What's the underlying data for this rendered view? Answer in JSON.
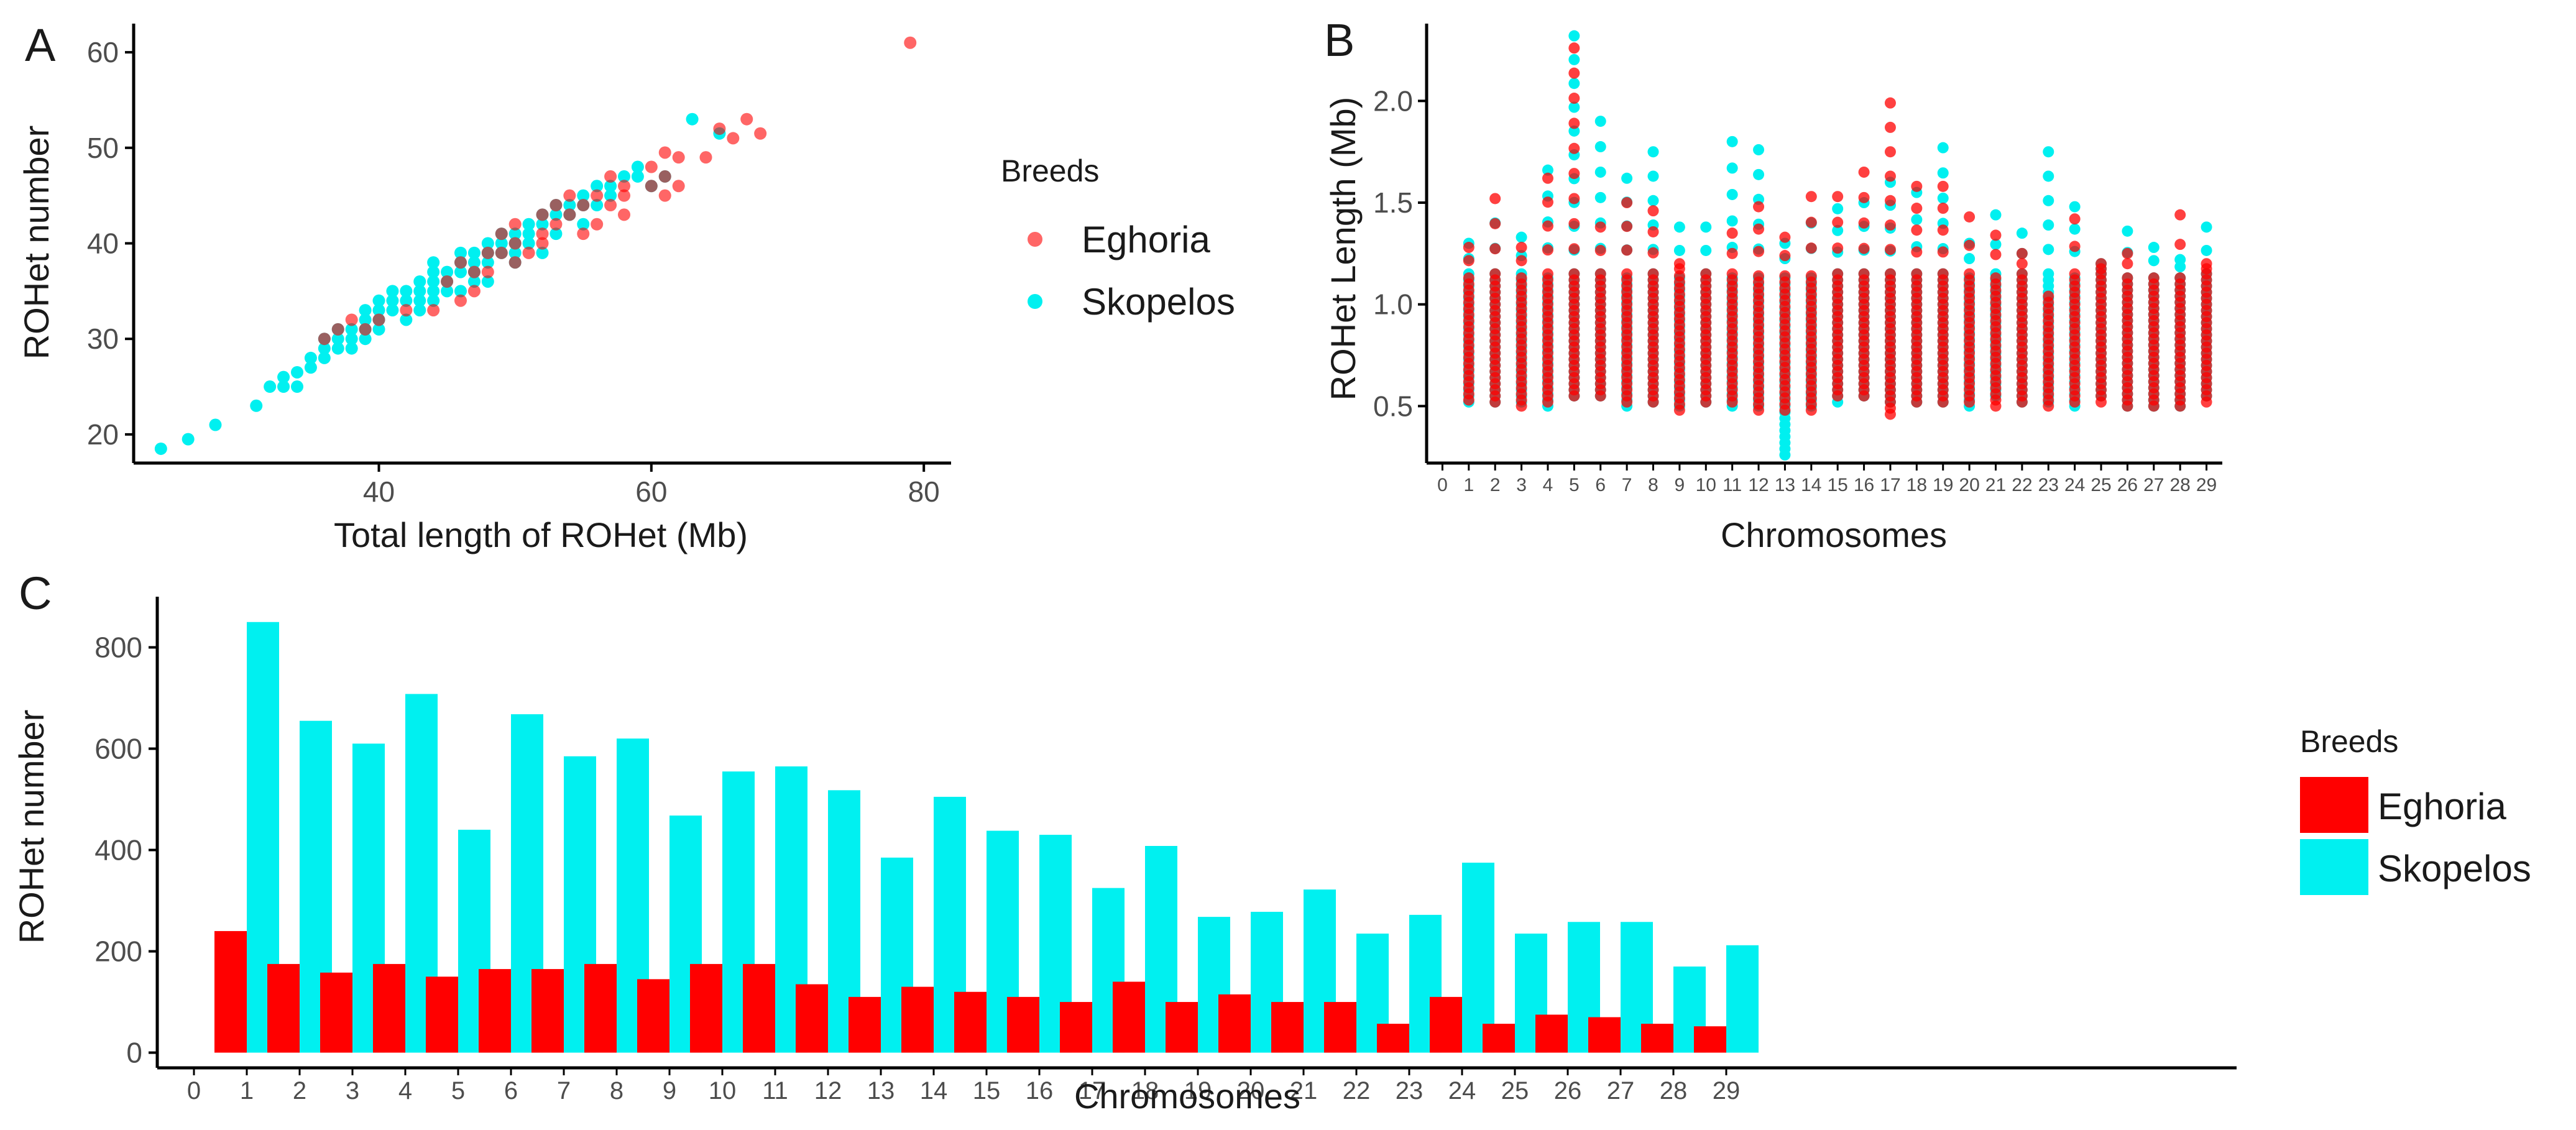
{
  "colors": {
    "eghoria": "#ff0000",
    "skopelos": "#00f0f0",
    "axis": "#000000",
    "tick_text": "#4d4d4d",
    "text": "#1a1a1a"
  },
  "chart_data": [
    {
      "panel": "A",
      "type": "scatter",
      "xlabel": "Total length of ROHet (Mb)",
      "ylabel": "ROHet number",
      "xlim": [
        22,
        82
      ],
      "ylim": [
        17,
        63
      ],
      "xticks": [
        40,
        60,
        80
      ],
      "yticks": [
        20,
        30,
        40,
        50,
        60
      ],
      "legend": {
        "title": "Breeds",
        "position": "right",
        "entries": [
          "Eghoria",
          "Skopelos"
        ]
      },
      "series": [
        {
          "name": "Eghoria",
          "points": [
            [
              79,
              61
            ],
            [
              65,
              52
            ],
            [
              67,
              53
            ],
            [
              68,
              51.5
            ],
            [
              66,
              51
            ],
            [
              64,
              49
            ],
            [
              62,
              49
            ],
            [
              61,
              49.5
            ],
            [
              60,
              48
            ],
            [
              61,
              47
            ],
            [
              62,
              46
            ],
            [
              61,
              45
            ],
            [
              58,
              46
            ],
            [
              58,
              45
            ],
            [
              57,
              44
            ],
            [
              55,
              44
            ],
            [
              54,
              43
            ],
            [
              54,
              45
            ],
            [
              56,
              45
            ],
            [
              53,
              42
            ],
            [
              52,
              41
            ],
            [
              52,
              40
            ],
            [
              51,
              39
            ],
            [
              50,
              40
            ],
            [
              50,
              38
            ],
            [
              49,
              39
            ],
            [
              48,
              37
            ],
            [
              47,
              37
            ],
            [
              47,
              35
            ],
            [
              46,
              34
            ],
            [
              56,
              42
            ],
            [
              58,
              43
            ],
            [
              55,
              41
            ],
            [
              49,
              41
            ],
            [
              52,
              43
            ],
            [
              44,
              33
            ],
            [
              42,
              33
            ],
            [
              45,
              36
            ],
            [
              48,
              39
            ],
            [
              53,
              44
            ],
            [
              57,
              47
            ],
            [
              50,
              42
            ],
            [
              46,
              38
            ],
            [
              39,
              31
            ],
            [
              40,
              32
            ],
            [
              37,
              31
            ],
            [
              38,
              32
            ],
            [
              36,
              30
            ],
            [
              60,
              46
            ]
          ]
        },
        {
          "name": "Skopelos",
          "points": [
            [
              24,
              18.5
            ],
            [
              26,
              19.5
            ],
            [
              28,
              21
            ],
            [
              31,
              23
            ],
            [
              32,
              25
            ],
            [
              33,
              26
            ],
            [
              34,
              26.5
            ],
            [
              35,
              27
            ],
            [
              35,
              28
            ],
            [
              36,
              29
            ],
            [
              36,
              30
            ],
            [
              37,
              30
            ],
            [
              37,
              31
            ],
            [
              38,
              31
            ],
            [
              38,
              30
            ],
            [
              39,
              31
            ],
            [
              39,
              32
            ],
            [
              39,
              33
            ],
            [
              40,
              32
            ],
            [
              40,
              33
            ],
            [
              40,
              34
            ],
            [
              41,
              33
            ],
            [
              41,
              34
            ],
            [
              42,
              34
            ],
            [
              42,
              35
            ],
            [
              43,
              34
            ],
            [
              43,
              35
            ],
            [
              43,
              36
            ],
            [
              44,
              35
            ],
            [
              44,
              36
            ],
            [
              44,
              37
            ],
            [
              45,
              36
            ],
            [
              45,
              37
            ],
            [
              46,
              37
            ],
            [
              46,
              38
            ],
            [
              47,
              37
            ],
            [
              47,
              38
            ],
            [
              47,
              39
            ],
            [
              48,
              38
            ],
            [
              48,
              39
            ],
            [
              48,
              40
            ],
            [
              49,
              39
            ],
            [
              49,
              40
            ],
            [
              50,
              40
            ],
            [
              50,
              41
            ],
            [
              51,
              41
            ],
            [
              51,
              42
            ],
            [
              52,
              42
            ],
            [
              52,
              43
            ],
            [
              53,
              43
            ],
            [
              53,
              44
            ],
            [
              54,
              43
            ],
            [
              54,
              44
            ],
            [
              55,
              44
            ],
            [
              55,
              45
            ],
            [
              56,
              44
            ],
            [
              56,
              46
            ],
            [
              57,
              45
            ],
            [
              57,
              46
            ],
            [
              58,
              47
            ],
            [
              59,
              47
            ],
            [
              59,
              48
            ],
            [
              60,
              46
            ],
            [
              61,
              47
            ],
            [
              63,
              53
            ],
            [
              65,
              51.5
            ],
            [
              34,
              25
            ],
            [
              36,
              28
            ],
            [
              38,
              29
            ],
            [
              40,
              31
            ],
            [
              42,
              32
            ],
            [
              44,
              34
            ],
            [
              46,
              35
            ],
            [
              48,
              36
            ],
            [
              50,
              38
            ],
            [
              52,
              39
            ],
            [
              46,
              39
            ],
            [
              49,
              41
            ],
            [
              51,
              40
            ],
            [
              53,
              41
            ],
            [
              55,
              42
            ],
            [
              41,
              35
            ],
            [
              45,
              35
            ],
            [
              33,
              25
            ],
            [
              37,
              29
            ],
            [
              39,
              30
            ],
            [
              43,
              33
            ],
            [
              47,
              36
            ],
            [
              44,
              38
            ],
            [
              50,
              39
            ]
          ]
        }
      ]
    },
    {
      "panel": "B",
      "type": "scatter",
      "xlabel": "Chromosomes",
      "ylabel": "ROHet Length (Mb)",
      "xlim": [
        -0.6,
        29.6
      ],
      "ylim": [
        0.22,
        2.38
      ],
      "xticks": [
        0,
        1,
        2,
        3,
        4,
        5,
        6,
        7,
        8,
        9,
        10,
        11,
        12,
        13,
        14,
        15,
        16,
        17,
        18,
        19,
        20,
        21,
        22,
        23,
        24,
        25,
        26,
        27,
        28,
        29
      ],
      "yticks": [
        0.5,
        1.0,
        1.5,
        2.0
      ],
      "ytick_labels": [
        "0.5",
        "1.0",
        "1.5",
        "2.0"
      ],
      "series": [
        {
          "name": "Skopelos",
          "max_length": [
            1.3,
            1.4,
            1.33,
            1.66,
            2.32,
            1.9,
            1.62,
            1.75,
            1.38,
            1.38,
            1.8,
            1.76,
            1.3,
            1.4,
            1.47,
            1.5,
            1.6,
            1.55,
            1.77,
            1.3,
            1.44,
            1.35,
            1.75,
            1.48,
            1.2,
            1.36,
            1.28,
            1.22,
            1.38
          ],
          "min_length": [
            0.52,
            0.52,
            0.52,
            0.5,
            0.55,
            0.55,
            0.5,
            0.52,
            0.5,
            0.52,
            0.5,
            0.5,
            0.26,
            0.5,
            0.52,
            0.55,
            0.52,
            0.52,
            0.52,
            0.5,
            0.55,
            0.52,
            0.52,
            0.5,
            0.55,
            0.5,
            0.5,
            0.5,
            0.55
          ]
        },
        {
          "name": "Eghoria",
          "max_length": [
            1.28,
            1.52,
            1.28,
            1.62,
            2.26,
            1.38,
            1.5,
            1.46,
            1.2,
            1.15,
            1.35,
            1.48,
            1.33,
            1.53,
            1.53,
            1.65,
            1.99,
            1.58,
            1.58,
            1.43,
            1.34,
            1.25,
            1.05,
            1.42,
            1.2,
            1.25,
            1.15,
            1.44,
            1.2
          ],
          "min_length": [
            0.53,
            0.52,
            0.5,
            0.52,
            0.55,
            0.55,
            0.52,
            0.52,
            0.48,
            0.52,
            0.52,
            0.48,
            0.48,
            0.48,
            0.55,
            0.55,
            0.46,
            0.52,
            0.52,
            0.52,
            0.5,
            0.52,
            0.5,
            0.52,
            0.52,
            0.5,
            0.5,
            0.5,
            0.52
          ]
        }
      ]
    },
    {
      "panel": "C",
      "type": "bar",
      "xlabel": "Chromosomes",
      "ylabel": "ROHet number",
      "categories": [
        "0",
        "1",
        "2",
        "3",
        "4",
        "5",
        "6",
        "7",
        "8",
        "9",
        "10",
        "11",
        "12",
        "13",
        "14",
        "15",
        "16",
        "17",
        "18",
        "19",
        "20",
        "21",
        "22",
        "23",
        "24",
        "25",
        "26",
        "27",
        "28",
        "29"
      ],
      "ylim": [
        -30,
        900
      ],
      "yticks": [
        0,
        200,
        400,
        600,
        800
      ],
      "legend": {
        "title": "Breeds",
        "position": "right",
        "entries": [
          "Eghoria",
          "Skopelos"
        ]
      },
      "series": [
        {
          "name": "Eghoria",
          "values": [
            0,
            240,
            175,
            158,
            175,
            150,
            165,
            165,
            175,
            145,
            175,
            175,
            135,
            110,
            130,
            120,
            110,
            100,
            140,
            100,
            115,
            100,
            100,
            57,
            110,
            57,
            75,
            70,
            57,
            52
          ]
        },
        {
          "name": "Skopelos",
          "values": [
            0,
            850,
            655,
            610,
            708,
            440,
            668,
            585,
            620,
            468,
            555,
            565,
            518,
            385,
            505,
            438,
            430,
            325,
            408,
            268,
            278,
            322,
            235,
            272,
            375,
            235,
            258,
            258,
            170,
            212
          ]
        }
      ]
    }
  ],
  "panels": {
    "a": "A",
    "b": "B",
    "c": "C"
  }
}
